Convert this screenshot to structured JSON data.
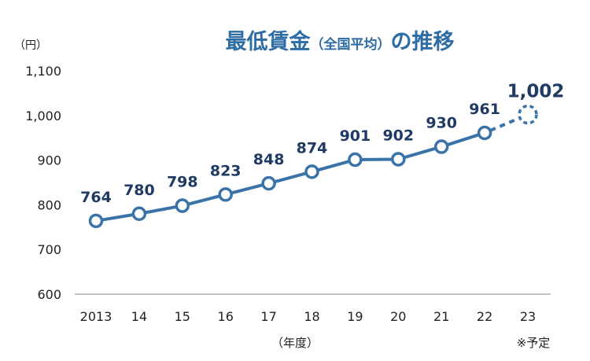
{
  "chart_data": {
    "type": "line",
    "title": "最低賃金",
    "subtitle": "（全国平均）",
    "title_suffix": "の推移",
    "unit": "（円）",
    "xlabel": "（年度）",
    "note": "※予定",
    "ylim": [
      600,
      1100
    ],
    "y_ticks": [
      600,
      700,
      800,
      900,
      1000,
      1100
    ],
    "y_tick_labels": [
      "600",
      "700",
      "800",
      "900",
      "1,000",
      "1,100"
    ],
    "categories": [
      "2013",
      "14",
      "15",
      "16",
      "17",
      "18",
      "19",
      "20",
      "21",
      "22",
      "23"
    ],
    "values": [
      764,
      780,
      798,
      823,
      848,
      874,
      901,
      902,
      930,
      961,
      1002
    ],
    "value_labels": [
      "764",
      "780",
      "798",
      "823",
      "848",
      "874",
      "901",
      "902",
      "930",
      "961",
      "1,002"
    ],
    "planned_from_index": 10,
    "grid": false,
    "line_color": "#3a73a8",
    "title_color": "#2e6da4",
    "label_color": "#1f3a63"
  }
}
